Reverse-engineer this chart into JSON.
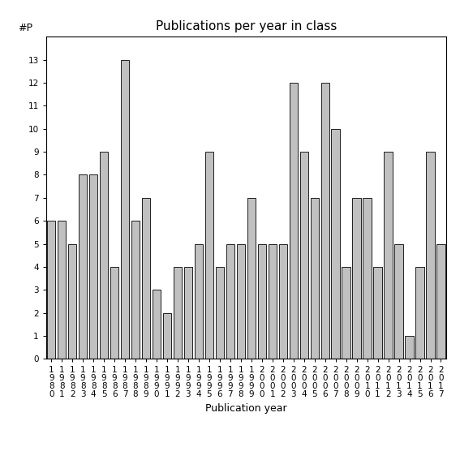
{
  "title": "Publications per year in class",
  "xlabel": "Publication year",
  "ylabel": "#P",
  "years": [
    1980,
    1981,
    1982,
    1983,
    1984,
    1985,
    1986,
    1987,
    1988,
    1989,
    1990,
    1991,
    1992,
    1993,
    1994,
    1995,
    1996,
    1997,
    1998,
    1999,
    2000,
    2001,
    2002,
    2003,
    2004,
    2005,
    2006,
    2007,
    2008,
    2009,
    2010,
    2011,
    2012,
    2013,
    2014,
    2015,
    2016,
    2017
  ],
  "values": [
    6,
    6,
    5,
    8,
    8,
    9,
    4,
    13,
    6,
    7,
    3,
    2,
    4,
    4,
    5,
    9,
    4,
    5,
    5,
    7,
    5,
    5,
    5,
    12,
    9,
    7,
    12,
    10,
    4,
    7,
    7,
    4,
    9,
    5,
    1,
    4,
    9,
    5
  ],
  "bar_color": "#c0c0c0",
  "bar_edgecolor": "#000000",
  "ylim": [
    0,
    14
  ],
  "yticks": [
    0,
    1,
    2,
    3,
    4,
    5,
    6,
    7,
    8,
    9,
    10,
    11,
    12,
    13
  ],
  "title_fontsize": 11,
  "axis_label_fontsize": 9,
  "tick_fontsize": 7.5,
  "background_color": "#ffffff"
}
